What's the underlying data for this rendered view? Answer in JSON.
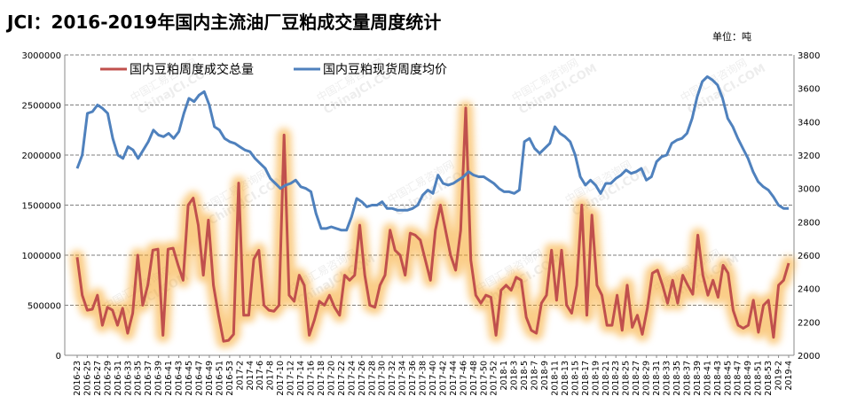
{
  "chart_data": {
    "type": "line",
    "title": "JCI：2016-2019年国内主流油厂豆粕成交量周度统计",
    "unit_label": "单位：吨",
    "watermark": {
      "cn": "中国汇易咨询网",
      "en": "ChinaJCI.COM"
    },
    "colors": {
      "volume": "#c0504d",
      "price": "#4f81bd",
      "glow": "#f7a528",
      "grid": "#7f7f7f"
    },
    "legend_position": "top-left",
    "grid": true,
    "x_tick_labels": [
      "2016-23",
      "2016-25",
      "2016-27",
      "2016-29",
      "2016-31",
      "2016-33",
      "2016-35",
      "2016-37",
      "2016-39",
      "2016-41",
      "2016-43",
      "2016-45",
      "2016-47",
      "2016-49",
      "2016-51",
      "2016-53",
      "2017-2",
      "2017-4",
      "2017-6",
      "2017-8",
      "2017-10",
      "2017-12",
      "2017-14",
      "2017-16",
      "2017-18",
      "2017-20",
      "2017-22",
      "2017-24",
      "2017-26",
      "2017-28",
      "2017-30",
      "2017-32",
      "2017-34",
      "2017-36",
      "2017-38",
      "2017-40",
      "2017-42",
      "2017-44",
      "2017-46",
      "2017-48",
      "2017-50",
      "2017-52",
      "2018-1",
      "2018-3",
      "2018-5",
      "2018-7",
      "2018-9",
      "2018-11",
      "2018-13",
      "2018-15",
      "2018-17",
      "2018-19",
      "2018-21",
      "2018-23",
      "2018-25",
      "2018-27",
      "2018-29",
      "2018-31",
      "2018-33",
      "2018-35",
      "2018-37",
      "2018-39",
      "2018-41",
      "2018-43",
      "2018-45",
      "2018-47",
      "2018-49",
      "2018-51",
      "2018-53",
      "2019-2",
      "2019-4"
    ],
    "y_left": {
      "min": 0,
      "max": 3000000,
      "ticks": [
        "0",
        "500000",
        "1000000",
        "1500000",
        "2000000",
        "2500000",
        "3000000"
      ]
    },
    "y_right": {
      "min": 2000,
      "max": 3800,
      "ticks": [
        "2000",
        "2200",
        "2400",
        "2600",
        "2800",
        "3000",
        "3200",
        "3400",
        "3600",
        "3800"
      ]
    },
    "series": [
      {
        "name": "国内豆粕周度成交总量",
        "axis": "left",
        "values": [
          980000,
          600000,
          450000,
          460000,
          600000,
          300000,
          480000,
          450000,
          300000,
          470000,
          220000,
          420000,
          1000000,
          500000,
          700000,
          1050000,
          1060000,
          200000,
          1060000,
          1070000,
          900000,
          750000,
          1500000,
          1570000,
          1300000,
          800000,
          1350000,
          700000,
          400000,
          140000,
          150000,
          210000,
          1720000,
          400000,
          400000,
          960000,
          1050000,
          500000,
          450000,
          440000,
          500000,
          2200000,
          600000,
          540000,
          800000,
          700000,
          200000,
          350000,
          540000,
          500000,
          600000,
          480000,
          400000,
          800000,
          750000,
          800000,
          1300000,
          800000,
          500000,
          480000,
          700000,
          800000,
          1250000,
          1050000,
          1000000,
          800000,
          1220000,
          1200000,
          1150000,
          950000,
          750000,
          1250000,
          1500000,
          1250000,
          1000000,
          850000,
          1250000,
          2470000,
          950000,
          600000,
          520000,
          600000,
          580000,
          200000,
          650000,
          700000,
          650000,
          780000,
          750000,
          380000,
          250000,
          220000,
          520000,
          600000,
          1050000,
          550000,
          1050000,
          500000,
          420000,
          700000,
          1500000,
          400000,
          1400000,
          700000,
          600000,
          300000,
          300000,
          600000,
          250000,
          700000,
          280000,
          400000,
          210000,
          470000,
          820000,
          850000,
          700000,
          520000,
          750000,
          520000,
          800000,
          700000,
          610000,
          1200000,
          800000,
          600000,
          750000,
          580000,
          900000,
          820000,
          450000,
          300000,
          270000,
          300000,
          550000,
          230000,
          500000,
          550000,
          180000,
          700000,
          750000,
          920000
        ],
        "peak_labels": []
      },
      {
        "name": "国内豆粕现货周度均价",
        "axis": "right",
        "values": [
          3120,
          3200,
          3450,
          3460,
          3500,
          3480,
          3450,
          3300,
          3200,
          3180,
          3250,
          3230,
          3180,
          3230,
          3280,
          3350,
          3320,
          3310,
          3330,
          3300,
          3340,
          3450,
          3540,
          3520,
          3560,
          3580,
          3500,
          3370,
          3350,
          3300,
          3280,
          3270,
          3250,
          3230,
          3220,
          3180,
          3150,
          3120,
          3060,
          3030,
          3000,
          3020,
          3030,
          3050,
          3010,
          3000,
          2980,
          2850,
          2760,
          2760,
          2770,
          2760,
          2750,
          2750,
          2830,
          2940,
          2920,
          2890,
          2900,
          2900,
          2920,
          2880,
          2880,
          2870,
          2870,
          2870,
          2880,
          2900,
          2960,
          2990,
          2970,
          3080,
          3030,
          3020,
          3030,
          3050,
          3070,
          3100,
          3080,
          3070,
          3070,
          3050,
          3030,
          3000,
          2980,
          2980,
          2970,
          2990,
          3280,
          3300,
          3240,
          3210,
          3240,
          3270,
          3370,
          3330,
          3310,
          3280,
          3200,
          3070,
          3020,
          3050,
          3020,
          2970,
          3030,
          3030,
          3060,
          3080,
          3110,
          3090,
          3100,
          3120,
          3050,
          3070,
          3160,
          3190,
          3200,
          3270,
          3290,
          3300,
          3330,
          3420,
          3550,
          3640,
          3670,
          3650,
          3620,
          3540,
          3420,
          3370,
          3300,
          3240,
          3180,
          3100,
          3040,
          3010,
          2990,
          2950,
          2900,
          2880,
          2880
        ]
      }
    ]
  }
}
